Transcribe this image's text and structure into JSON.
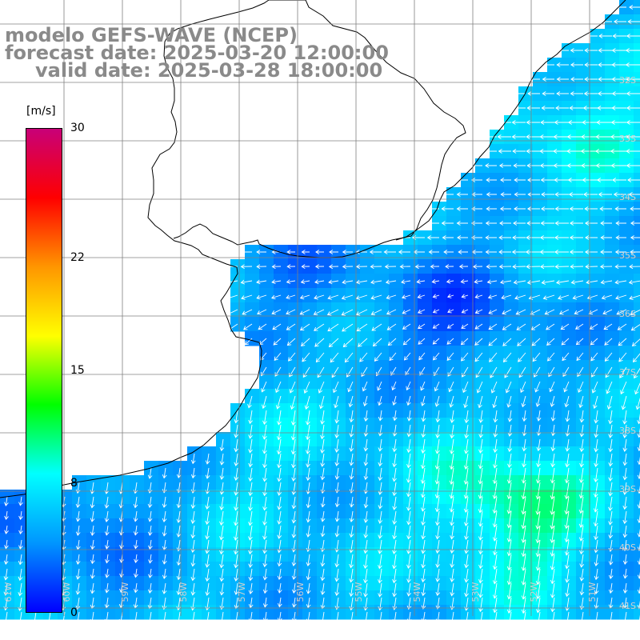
{
  "title": {
    "line1": "modelo GEFS-WAVE (NCEP)",
    "line2": "forecast date: 2025-03-20 12:00:00",
    "line3": "valid date: 2025-03-28 18:00:00"
  },
  "colorbar": {
    "unit": "[m/s]",
    "min": 0,
    "max": 30,
    "ticks": [
      "30",
      "22",
      "15",
      "8",
      "0"
    ],
    "tick_values": [
      30,
      22,
      15,
      8,
      0
    ],
    "colors": [
      "#0000ff",
      "#0096ff",
      "#00ffff",
      "#00ff00",
      "#ffff00",
      "#ff9600",
      "#ff0000",
      "#c80078"
    ]
  },
  "map": {
    "lat_labels": [
      "32S",
      "33S",
      "34S",
      "35S",
      "36S",
      "37S",
      "38S",
      "39S",
      "40S",
      "41S"
    ],
    "lon_labels": [
      "61W",
      "60W",
      "59W",
      "58W",
      "57W",
      "56W",
      "55W",
      "54W",
      "53W",
      "52W",
      "51W"
    ],
    "land_color": "#ffffff",
    "grid_color": "#808080",
    "arrow_color": "#ffffff"
  }
}
